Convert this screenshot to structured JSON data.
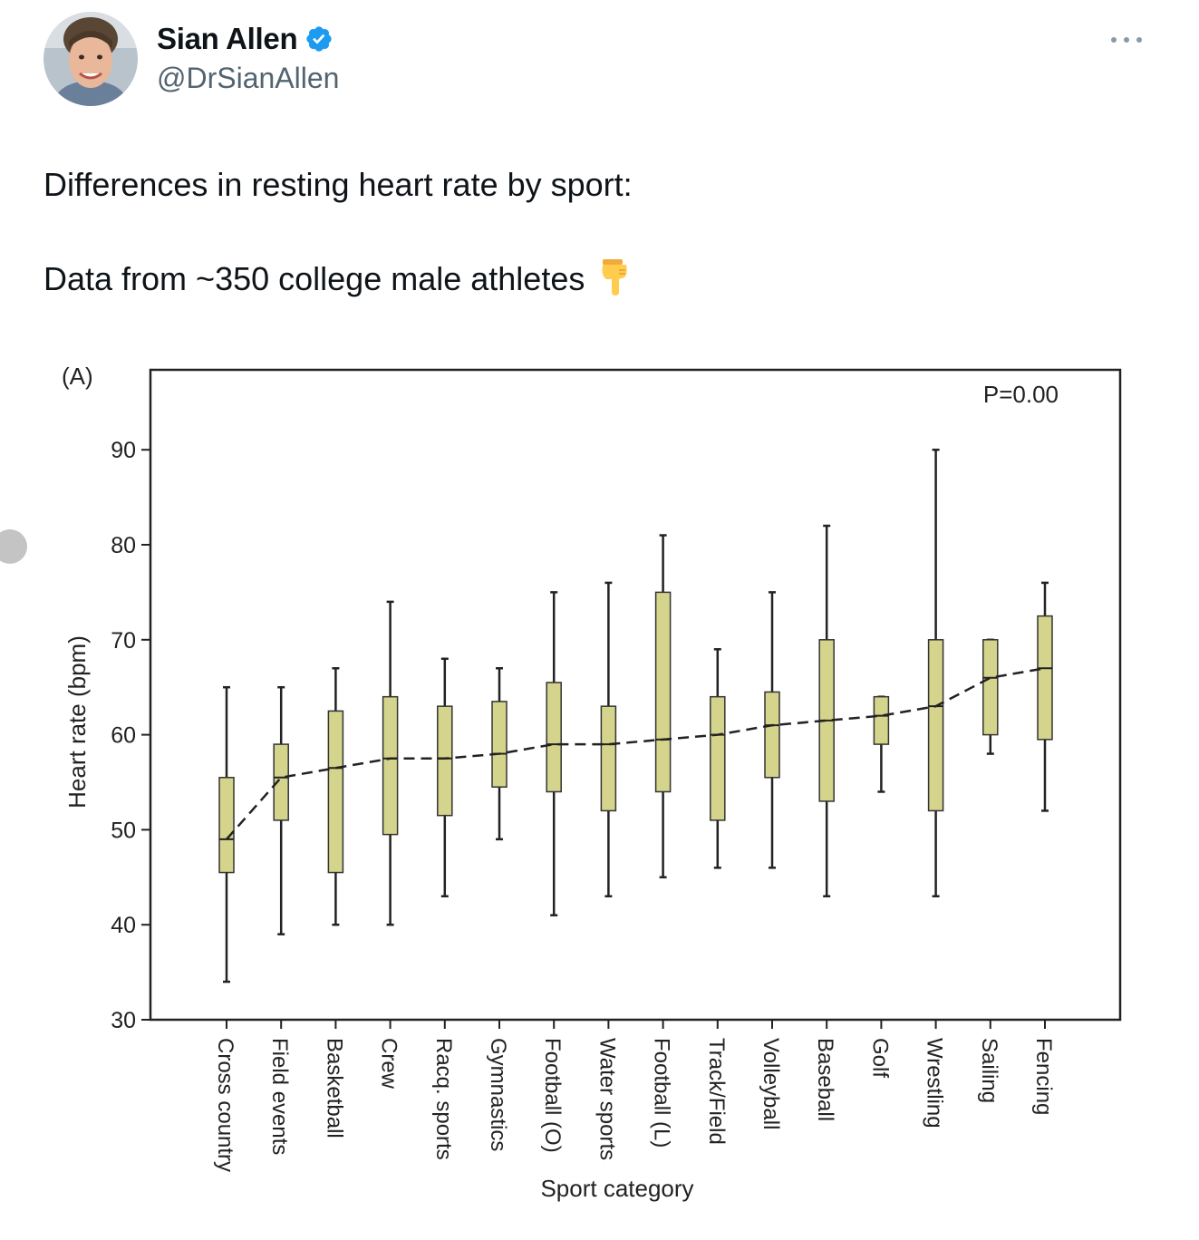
{
  "author": {
    "display_name": "Sian Allen",
    "handle": "@DrSianAllen",
    "verified": true,
    "avatar_icon": "profile-photo",
    "verified_icon": "verified-badge-icon",
    "verified_color": "#1d9bf0"
  },
  "tweet": {
    "line1": "Differences in resting heart rate by sport:",
    "line2": "Data from ~350 college male athletes",
    "emoji_icon": "backhand-index-pointing-down-icon"
  },
  "menu": {
    "icon": "more-horizontal-icon"
  },
  "chart_data": {
    "type": "box",
    "panel_label": "(A)",
    "annotation": "P=0.00",
    "xlabel": "Sport category",
    "ylabel": "Heart rate (bpm)",
    "ylim": [
      30,
      97
    ],
    "yticks": [
      30,
      40,
      50,
      60,
      70,
      80,
      90
    ],
    "box_color": "#d4d48c",
    "categories": [
      "Cross country",
      "Field events",
      "Basketball",
      "Crew",
      "Racq. sports",
      "Gymnastics",
      "Football (O)",
      "Water sports",
      "Football (L)",
      "Track/Field",
      "Volleyball",
      "Baseball",
      "Golf",
      "Wrestling",
      "Sailing",
      "Fencing"
    ],
    "min": [
      34,
      39,
      40,
      40,
      43,
      49,
      41,
      43,
      45,
      46,
      46,
      43,
      54,
      43,
      58,
      52
    ],
    "q1": [
      45.5,
      51,
      45.5,
      49.5,
      51.5,
      54.5,
      54,
      52,
      54,
      51,
      55.5,
      53,
      59,
      52,
      60,
      59.5
    ],
    "median": [
      49,
      55.5,
      56.5,
      57.5,
      57.5,
      58,
      59,
      59,
      59.5,
      60,
      61,
      61.5,
      62,
      63,
      66,
      67
    ],
    "q3": [
      55.5,
      59,
      62.5,
      64,
      63,
      63.5,
      65.5,
      63,
      75,
      64,
      64.5,
      70,
      64,
      70,
      70,
      72.5
    ],
    "max": [
      65,
      65,
      67,
      74,
      68,
      67,
      75,
      76,
      81,
      69,
      75,
      82,
      64,
      90,
      70,
      76
    ],
    "median_line": "dashed"
  }
}
